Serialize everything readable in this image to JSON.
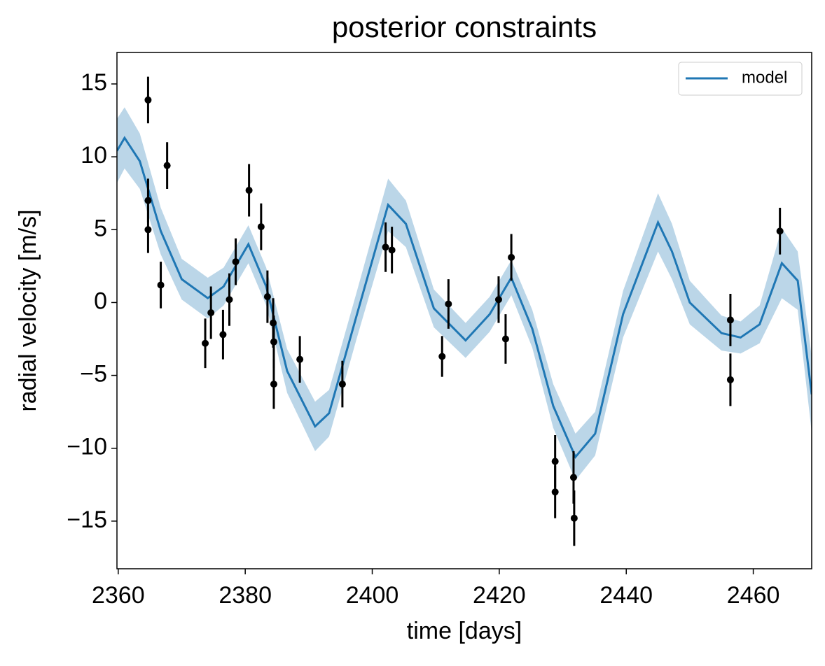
{
  "chart_data": {
    "type": "line",
    "title": "posterior constraints",
    "xlabel": "time [days]",
    "ylabel": "radial velocity [m/s]",
    "xlim": [
      2359.8,
      2469.2
    ],
    "ylim": [
      -18.27,
      17.16
    ],
    "xticks": [
      2360,
      2380,
      2400,
      2420,
      2440,
      2460
    ],
    "yticks": [
      {
        "value": -15,
        "label": "−15"
      },
      {
        "value": -10,
        "label": "−10"
      },
      {
        "value": -5,
        "label": "−5"
      },
      0,
      5,
      10,
      15
    ],
    "legend": "upper right",
    "band_opacity": 0.3,
    "series": [
      {
        "name": "model",
        "color": "#1f77b4",
        "x": [
          2359.8,
          2361.0,
          2363.4,
          2366.7,
          2370.0,
          2374.1,
          2376.6,
          2380.5,
          2383.3,
          2386.6,
          2391.0,
          2393.2,
          2397.6,
          2402.5,
          2405.3,
          2409.7,
          2414.7,
          2418.5,
          2421.9,
          2425.2,
          2428.5,
          2432.0,
          2435.1,
          2439.5,
          2445.0,
          2447.2,
          2450.0,
          2455.0,
          2458.0,
          2461.0,
          2464.5,
          2467.0,
          2469.2
        ],
        "values": [
          10.4,
          11.3,
          9.7,
          4.9,
          1.6,
          0.3,
          1.1,
          4.0,
          1.1,
          -4.7,
          -8.5,
          -7.6,
          -0.8,
          6.7,
          5.4,
          -0.4,
          -2.6,
          -0.8,
          1.7,
          -1.8,
          -7.1,
          -10.6,
          -9.0,
          -0.8,
          5.5,
          3.5,
          0.0,
          -2.1,
          -2.4,
          -1.5,
          2.7,
          1.5,
          -6.3
        ],
        "lower": [
          8.2,
          9.2,
          7.8,
          3.3,
          0.2,
          -1.1,
          -0.2,
          2.7,
          -0.2,
          -6.2,
          -10.2,
          -9.2,
          -2.4,
          4.9,
          3.8,
          -1.7,
          -3.8,
          -2.0,
          0.5,
          -3.1,
          -8.6,
          -12.2,
          -10.5,
          -2.4,
          3.5,
          1.6,
          -1.5,
          -3.3,
          -3.5,
          -2.8,
          0.3,
          -0.5,
          -8.9
        ],
        "upper": [
          12.6,
          13.4,
          11.6,
          6.5,
          3.0,
          1.7,
          2.4,
          5.3,
          2.4,
          -3.2,
          -6.8,
          -6.0,
          0.8,
          8.5,
          7.0,
          0.9,
          -1.4,
          0.4,
          2.9,
          -0.5,
          -5.6,
          -9.0,
          -7.5,
          0.8,
          7.5,
          5.4,
          1.5,
          -0.9,
          -1.3,
          -0.2,
          5.1,
          3.5,
          -3.7
        ]
      }
    ],
    "points": {
      "color": "#000000",
      "x": [
        2364.7,
        2364.7,
        2364.7,
        2367.7,
        2366.7,
        2373.7,
        2374.6,
        2376.5,
        2377.5,
        2378.5,
        2380.6,
        2382.5,
        2383.5,
        2384.4,
        2384.5,
        2384.5,
        2388.6,
        2395.3,
        2402.1,
        2403.1,
        2411.0,
        2412.0,
        2419.9,
        2421.0,
        2421.9,
        2428.8,
        2428.8,
        2431.7,
        2431.8,
        2456.4,
        2456.4,
        2464.2
      ],
      "values": [
        13.9,
        7.0,
        5.0,
        9.4,
        1.2,
        -2.8,
        -0.7,
        -2.2,
        0.2,
        2.8,
        7.7,
        5.2,
        0.4,
        -1.4,
        -2.7,
        -5.6,
        -3.9,
        -5.6,
        3.8,
        3.6,
        -3.7,
        -0.1,
        0.2,
        -2.5,
        3.1,
        -10.9,
        -13.0,
        -12.0,
        -14.8,
        -1.2,
        -5.3,
        4.9
      ],
      "errors": [
        1.6,
        1.5,
        1.6,
        1.6,
        1.6,
        1.7,
        1.8,
        1.7,
        1.8,
        1.6,
        1.8,
        1.6,
        1.8,
        1.7,
        1.8,
        1.7,
        1.6,
        1.6,
        1.7,
        1.6,
        1.4,
        1.7,
        1.6,
        1.7,
        1.6,
        1.8,
        1.8,
        1.8,
        1.9,
        1.8,
        1.8,
        1.6
      ]
    }
  }
}
